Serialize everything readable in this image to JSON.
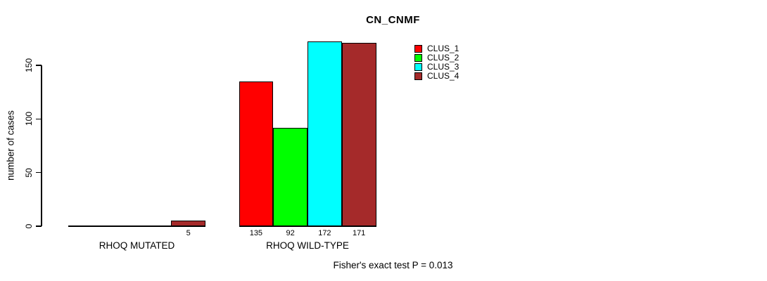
{
  "title": "CN_CNMF",
  "footer": "Fisher's exact test P = 0.013",
  "y_axis": {
    "label": "number of cases",
    "ticks": [
      0,
      50,
      100,
      150
    ]
  },
  "x_axis": {
    "groups": [
      "RHOQ MUTATED",
      "RHOQ WILD-TYPE"
    ]
  },
  "legend": {
    "items": [
      {
        "label": "CLUS_1",
        "color": "#FF0000"
      },
      {
        "label": "CLUS_2",
        "color": "#00FF00"
      },
      {
        "label": "CLUS_3",
        "color": "#00FFFF"
      },
      {
        "label": "CLUS_4",
        "color": "#A52A2A"
      }
    ]
  },
  "chart_data": {
    "type": "bar",
    "title": "CN_CNMF",
    "xlabel": "",
    "ylabel": "number of cases",
    "ylim": [
      0,
      172
    ],
    "yticks": [
      0,
      50,
      100,
      150
    ],
    "grid": false,
    "legend_position": "top-right",
    "categories": [
      "RHOQ MUTATED",
      "RHOQ WILD-TYPE"
    ],
    "series": [
      {
        "name": "CLUS_1",
        "color": "#FF0000",
        "values": [
          0,
          135
        ]
      },
      {
        "name": "CLUS_2",
        "color": "#00FF00",
        "values": [
          0,
          92
        ]
      },
      {
        "name": "CLUS_3",
        "color": "#00FFFF",
        "values": [
          0,
          172
        ]
      },
      {
        "name": "CLUS_4",
        "color": "#A52A2A",
        "values": [
          5,
          171
        ]
      }
    ],
    "bar_value_labels": [
      [
        null,
        null,
        null,
        5
      ],
      [
        135,
        92,
        172,
        171
      ]
    ],
    "annotation": "Fisher's exact test P = 0.013"
  }
}
